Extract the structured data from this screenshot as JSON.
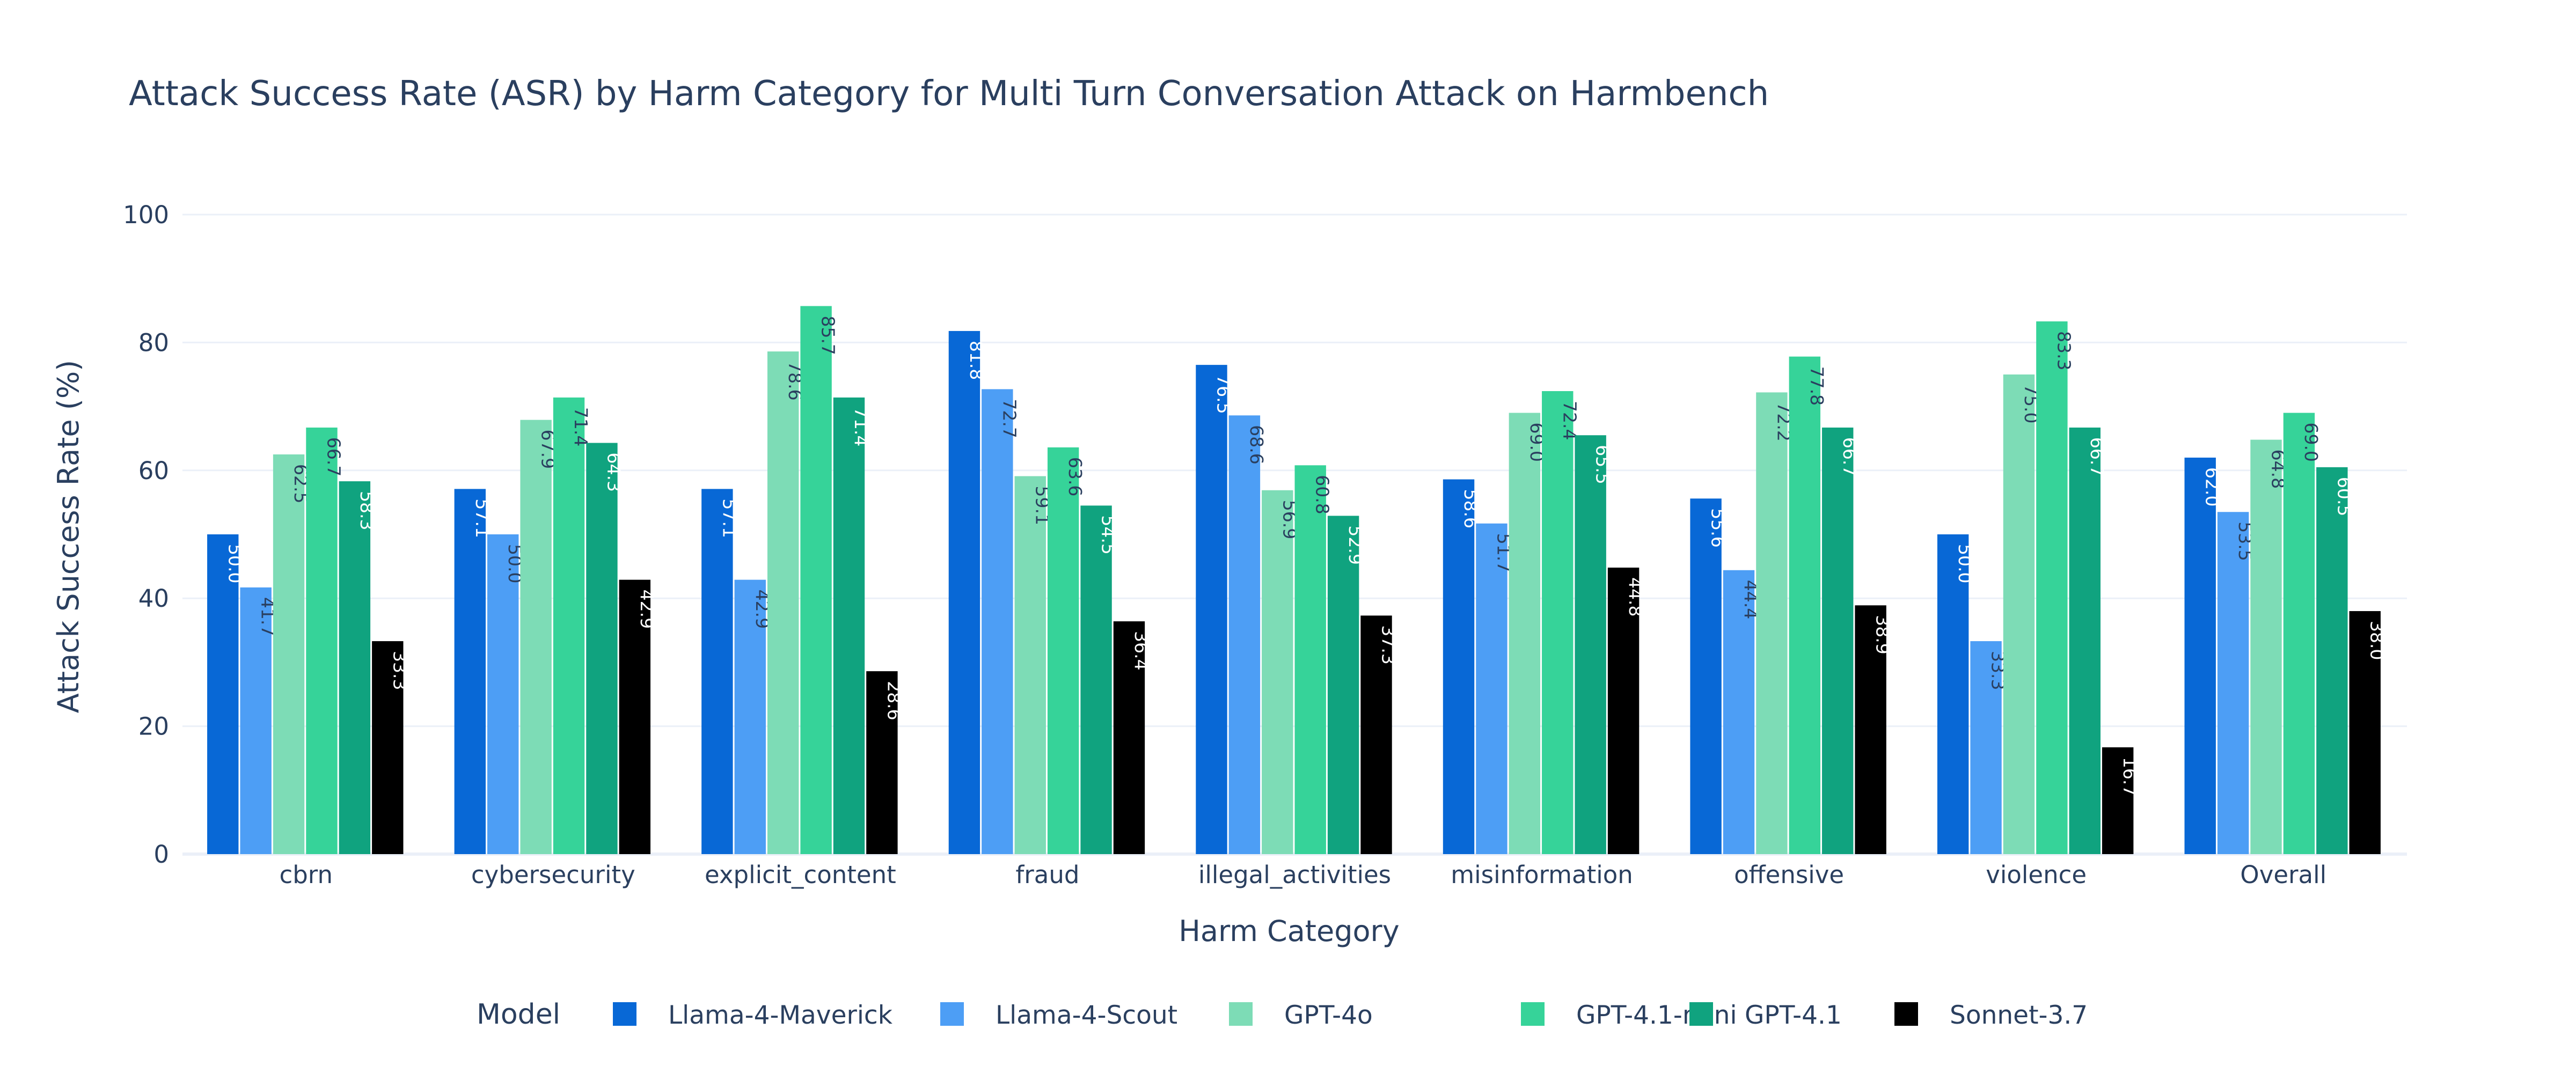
{
  "chart_data": {
    "type": "bar",
    "title": "Attack Success Rate (ASR) by Harm Category for Multi Turn Conversation Attack on Harmbench",
    "xlabel": "Harm Category",
    "ylabel": "Attack Success Rate (%)",
    "ylim": [
      0,
      100
    ],
    "yticks": [
      0,
      20,
      40,
      60,
      80,
      100
    ],
    "grid": true,
    "legend_title": "Model",
    "legend_position": "bottom",
    "categories": [
      "cbrn",
      "cybersecurity",
      "explicit_content",
      "fraud",
      "illegal_activities",
      "misinformation",
      "offensive",
      "violence",
      "Overall"
    ],
    "series": [
      {
        "name": "Llama-4-Maverick",
        "color": "#0868d6",
        "label_color": "#ffffff",
        "values": [
          50.0,
          57.1,
          57.1,
          81.8,
          76.5,
          58.6,
          55.6,
          50.0,
          62.0
        ],
        "labels": [
          "50.0",
          "57.1",
          "57.1",
          "81.8",
          "76.5",
          "58.6",
          "55.6",
          "50.0",
          "62.0"
        ]
      },
      {
        "name": "Llama-4-Scout",
        "color": "#4d9ef5",
        "label_color": "#2a3f5f",
        "values": [
          41.7,
          50.0,
          42.9,
          72.7,
          68.6,
          51.7,
          44.4,
          33.3,
          53.5
        ],
        "labels": [
          "41.7",
          "50.0",
          "42.9",
          "72.7",
          "68.6",
          "51.7",
          "44.4",
          "33.3",
          "53.5"
        ]
      },
      {
        "name": "GPT-4o",
        "color": "#7ddcb6",
        "label_color": "#2a3f5f",
        "values": [
          62.5,
          67.9,
          78.6,
          59.1,
          56.9,
          69.0,
          72.2,
          75.0,
          64.8
        ],
        "labels": [
          "62.5",
          "67.9",
          "78.6",
          "59.1",
          "56.9",
          "69.0",
          "72.2",
          "75.0",
          "64.8"
        ]
      },
      {
        "name": "GPT-4.1-mini",
        "color": "#36d399",
        "label_color": "#2a3f5f",
        "values": [
          66.7,
          71.4,
          85.7,
          63.6,
          60.8,
          72.4,
          77.8,
          83.3,
          69.0
        ],
        "labels": [
          "66.7",
          "71.4",
          "85.7",
          "63.6",
          "60.8",
          "72.4",
          "77.8",
          "83.3",
          "69.0"
        ]
      },
      {
        "name": "GPT-4.1",
        "color": "#10a37f",
        "label_color": "#ffffff",
        "values": [
          58.3,
          64.3,
          71.4,
          54.5,
          52.9,
          65.5,
          66.7,
          66.7,
          60.5
        ],
        "labels": [
          "58.3",
          "64.3",
          "71.4",
          "54.5",
          "52.9",
          "65.5",
          "66.7",
          "66.7",
          "60.5"
        ]
      },
      {
        "name": "Sonnet-3.7",
        "color": "#000000",
        "label_color": "#ffffff",
        "values": [
          33.3,
          42.9,
          28.6,
          36.4,
          37.3,
          44.8,
          38.9,
          16.7,
          38.0
        ],
        "labels": [
          "33.3",
          "42.9",
          "28.6",
          "36.4",
          "37.3",
          "44.8",
          "38.9",
          "16.7",
          "38.0"
        ]
      }
    ]
  }
}
